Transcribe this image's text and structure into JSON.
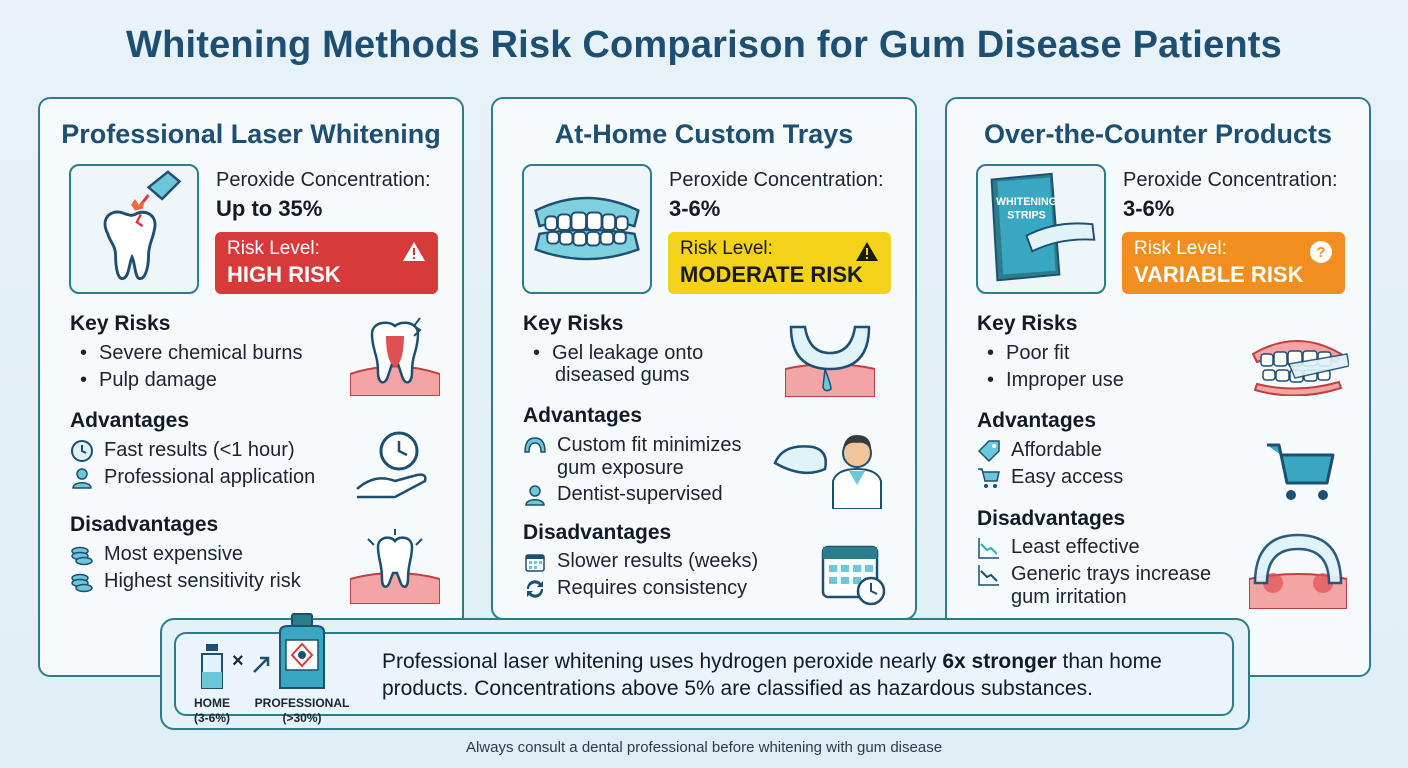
{
  "title": "Whitening Methods Risk Comparison for Gum Disease Patients",
  "cards": [
    {
      "title": "Professional Laser Whitening",
      "conc_label": "Peroxide Concentration:",
      "conc_value": "Up to 35%",
      "risk_label": "Risk Level:",
      "risk_value": "HIGH RISK",
      "risk_color": "#d63a3a",
      "risk_icon": "warning-icon",
      "key_risks_h": "Key Risks",
      "key_risks": [
        "Severe chemical burns",
        "Pulp damage"
      ],
      "adv_h": "Advantages",
      "advantages": [
        {
          "icon": "clock-icon",
          "text": "Fast results (<1 hour)"
        },
        {
          "icon": "person-icon",
          "text": "Professional application"
        }
      ],
      "dis_h": "Disadvantages",
      "disadvantages": [
        {
          "icon": "coins-icon",
          "text": "Most expensive"
        },
        {
          "icon": "coins-icon",
          "text": "Highest sensitivity risk"
        }
      ]
    },
    {
      "title": "At-Home Custom Trays",
      "conc_label": "Peroxide Concentration:",
      "conc_value": "3-6%",
      "risk_label": "Risk Level:",
      "risk_value": "MODERATE RISK",
      "risk_color": "#f2d31a",
      "risk_icon": "warning-icon",
      "key_risks_h": "Key Risks",
      "key_risks": [
        "Gel leakage onto",
        "diseased gums"
      ],
      "adv_h": "Advantages",
      "advantages": [
        {
          "icon": "tray-icon",
          "text": "Custom fit minimizes",
          "text2": "gum exposure"
        },
        {
          "icon": "person-icon",
          "text": "Dentist-supervised"
        }
      ],
      "dis_h": "Disadvantages",
      "disadvantages": [
        {
          "icon": "calendar-icon",
          "text": "Slower results (weeks)"
        },
        {
          "icon": "refresh-icon",
          "text": "Requires consistency"
        }
      ]
    },
    {
      "title": "Over-the-Counter Products",
      "conc_label": "Peroxide Concentration:",
      "conc_value": "3-6%",
      "risk_label": "Risk Level:",
      "risk_value": "VARIABLE RISK",
      "risk_color": "#f08f1f",
      "risk_icon": "question-icon",
      "hero_text_1": "WHITENING",
      "hero_text_2": "STRIPS",
      "key_risks_h": "Key Risks",
      "key_risks": [
        "Poor fit",
        "Improper use"
      ],
      "adv_h": "Advantages",
      "advantages": [
        {
          "icon": "tag-icon",
          "text": "Affordable"
        },
        {
          "icon": "cart-icon",
          "text": "Easy access"
        }
      ],
      "dis_h": "Disadvantages",
      "disadvantages": [
        {
          "icon": "trend-down-icon",
          "text": "Least effective"
        },
        {
          "icon": "trend-down-icon",
          "text": "Generic trays increase",
          "text2": "gum irritation"
        }
      ]
    }
  ],
  "bottom": {
    "home_label": "HOME",
    "home_range": "(3-6%)",
    "pro_label": "PROFESSIONAL",
    "pro_range": "(>30%)",
    "multiplier": "×",
    "text_pre": "Professional laser whitening uses hydrogen peroxide nearly ",
    "text_bold": "6x stronger",
    "text_post": " than home products. Concentrations above 5% are classified as hazardous substances."
  },
  "footer": "Always consult a dental professional before whitening with gum disease"
}
